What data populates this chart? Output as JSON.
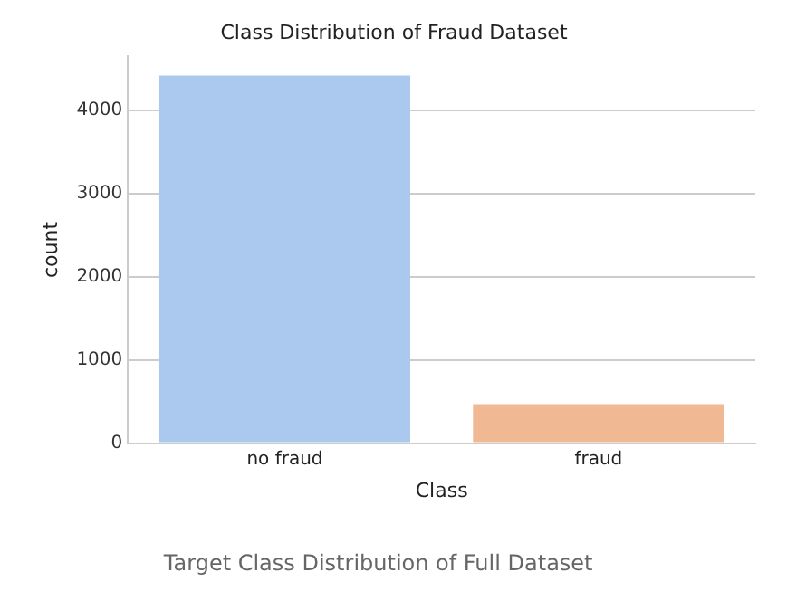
{
  "chart_data": {
    "type": "bar",
    "title": "Class Distribution of Fraud Dataset",
    "xlabel": "Class",
    "ylabel": "count",
    "categories": [
      "no fraud",
      "fraud"
    ],
    "values": [
      4420,
      470
    ],
    "colors": [
      "#abc9ee",
      "#f1b993"
    ],
    "ylim": [
      0,
      4650
    ],
    "yticks": [
      0,
      1000,
      2000,
      3000,
      4000
    ],
    "grid": "y",
    "annotations": [
      "Target Class Distribution of Full Dataset"
    ]
  }
}
